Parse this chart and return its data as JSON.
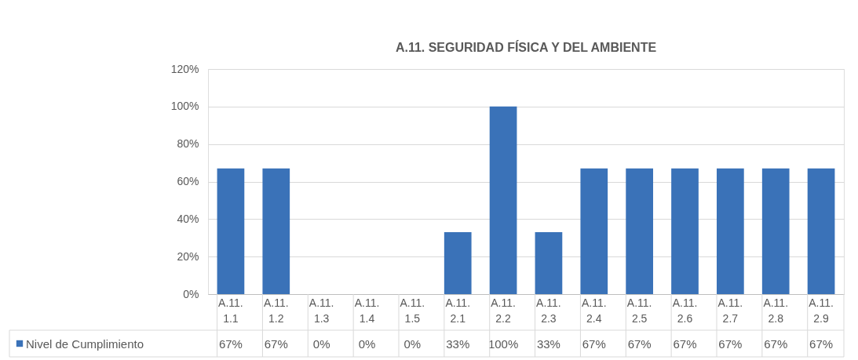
{
  "chart_data": {
    "type": "bar",
    "title": "A.11. SEGURIDAD FÍSICA Y DEL AMBIENTE",
    "categories": [
      "A.11.1.1",
      "A.11.1.2",
      "A.11.1.3",
      "A.11.1.4",
      "A.11.1.5",
      "A.11.2.1",
      "A.11.2.2",
      "A.11.2.3",
      "A.11.2.4",
      "A.11.2.5",
      "A.11.2.6",
      "A.11.2.7",
      "A.11.2.8",
      "A.11.2.9"
    ],
    "series": [
      {
        "name": "Nivel de Cumplimiento",
        "color": "#3a72b8",
        "values": [
          67,
          67,
          0,
          0,
          0,
          33,
          100,
          33,
          67,
          67,
          67,
          67,
          67,
          67
        ],
        "value_labels": [
          "67%",
          "67%",
          "0%",
          "0%",
          "0%",
          "33%",
          "100%",
          "33%",
          "67%",
          "67%",
          "67%",
          "67%",
          "67%",
          "67%"
        ]
      }
    ],
    "ylim": [
      0,
      120
    ],
    "yticks": [
      {
        "value": 0,
        "label": "0%"
      },
      {
        "value": 20,
        "label": "20%"
      },
      {
        "value": 40,
        "label": "40%"
      },
      {
        "value": 60,
        "label": "60%"
      },
      {
        "value": 80,
        "label": "80%"
      },
      {
        "value": 100,
        "label": "100%"
      },
      {
        "value": 120,
        "label": "120%"
      }
    ],
    "grid": "y",
    "legend": "bottom"
  }
}
